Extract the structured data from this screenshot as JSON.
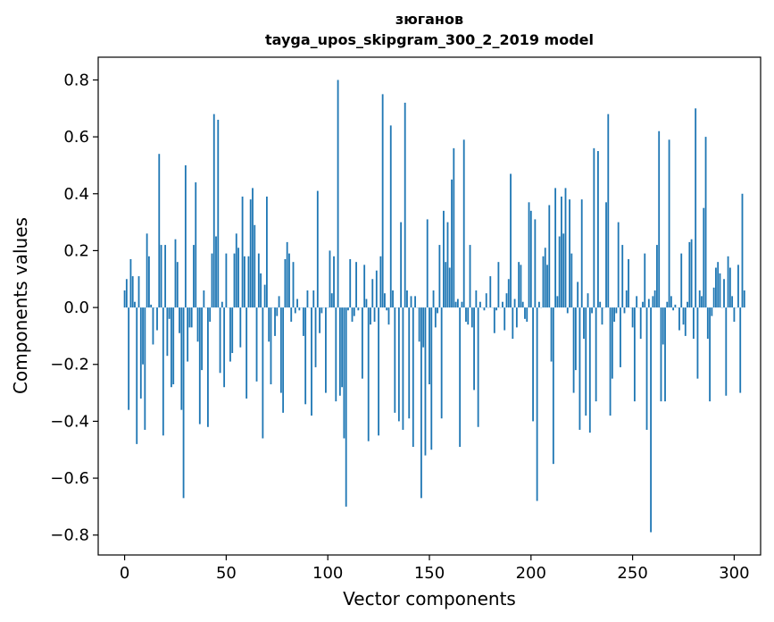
{
  "chart_data": {
    "type": "bar",
    "title": "зюганов",
    "subtitle": "tayga_upos_skipgram_300_2_2019 model",
    "xlabel": "Vector components",
    "ylabel": "Components values",
    "xlim": [
      -13,
      313
    ],
    "ylim": [
      -0.87,
      0.88
    ],
    "xticks": [
      0,
      50,
      100,
      150,
      200,
      250,
      300
    ],
    "yticks": [
      -0.8,
      -0.6,
      -0.4,
      -0.2,
      0.0,
      0.2,
      0.4,
      0.6,
      0.8
    ],
    "ytick_labels": [
      "−0.8",
      "−0.6",
      "−0.4",
      "−0.2",
      "0.0",
      "0.2",
      "0.4",
      "0.6",
      "0.8"
    ],
    "series": [
      {
        "name": "components",
        "color": "#1f77b4",
        "values": [
          0.06,
          0.1,
          -0.36,
          0.17,
          0.11,
          0.02,
          -0.48,
          0.11,
          -0.32,
          -0.2,
          -0.43,
          0.26,
          0.18,
          0.01,
          -0.13,
          0.0,
          -0.08,
          0.54,
          0.22,
          -0.45,
          0.22,
          -0.17,
          -0.04,
          -0.28,
          -0.27,
          0.24,
          0.16,
          -0.09,
          -0.36,
          -0.67,
          0.5,
          -0.19,
          -0.07,
          -0.07,
          0.22,
          0.44,
          -0.12,
          -0.41,
          -0.22,
          0.06,
          0.0,
          -0.42,
          -0.05,
          0.19,
          0.68,
          0.25,
          0.66,
          -0.23,
          0.02,
          -0.28,
          0.19,
          0.0,
          -0.19,
          -0.16,
          0.19,
          0.26,
          0.21,
          -0.14,
          0.39,
          0.18,
          -0.32,
          0.18,
          0.38,
          0.42,
          0.29,
          -0.26,
          0.19,
          0.12,
          -0.46,
          0.08,
          0.39,
          -0.12,
          -0.27,
          0.0,
          -0.1,
          -0.03,
          0.04,
          -0.3,
          -0.37,
          0.17,
          0.23,
          0.19,
          -0.05,
          0.16,
          -0.02,
          0.03,
          -0.01,
          0.0,
          -0.1,
          -0.34,
          0.06,
          0.0,
          -0.38,
          0.06,
          -0.21,
          0.41,
          -0.09,
          -0.02,
          0.0,
          -0.3,
          0.0,
          0.2,
          0.05,
          0.18,
          -0.33,
          0.8,
          -0.31,
          -0.28,
          -0.46,
          -0.7,
          -0.01,
          0.17,
          -0.05,
          -0.03,
          0.16,
          -0.01,
          0.0,
          -0.25,
          0.15,
          0.03,
          -0.47,
          -0.06,
          0.1,
          -0.05,
          0.13,
          -0.45,
          0.18,
          0.75,
          0.05,
          -0.01,
          -0.06,
          0.64,
          0.06,
          -0.37,
          0.0,
          -0.4,
          0.3,
          -0.43,
          0.72,
          0.06,
          -0.39,
          0.04,
          -0.49,
          0.04,
          0.0,
          -0.12,
          -0.67,
          -0.14,
          -0.52,
          0.31,
          -0.27,
          -0.5,
          0.06,
          -0.07,
          -0.02,
          0.22,
          -0.39,
          0.34,
          0.16,
          0.3,
          0.14,
          0.45,
          0.56,
          0.02,
          0.03,
          -0.49,
          0.02,
          0.59,
          -0.05,
          -0.06,
          0.22,
          -0.07,
          -0.29,
          0.06,
          -0.42,
          0.02,
          0.0,
          -0.01,
          0.05,
          0.0,
          0.11,
          0.0,
          -0.09,
          -0.01,
          0.16,
          0.0,
          0.02,
          -0.08,
          0.05,
          0.1,
          0.47,
          -0.11,
          0.03,
          -0.07,
          0.16,
          0.15,
          0.02,
          -0.04,
          -0.05,
          0.37,
          0.34,
          -0.4,
          0.31,
          -0.68,
          0.02,
          0.0,
          0.18,
          0.21,
          0.15,
          0.36,
          -0.19,
          -0.55,
          0.42,
          0.04,
          0.25,
          0.39,
          0.26,
          0.42,
          -0.02,
          0.38,
          0.19,
          -0.3,
          -0.22,
          0.09,
          -0.43,
          0.38,
          -0.11,
          -0.38,
          0.05,
          -0.44,
          -0.02,
          0.56,
          -0.33,
          0.55,
          0.02,
          -0.06,
          0.0,
          0.37,
          0.68,
          -0.38,
          -0.25,
          -0.05,
          -0.02,
          0.3,
          -0.21,
          0.22,
          -0.02,
          0.06,
          0.17,
          0.0,
          -0.07,
          -0.33,
          0.04,
          0.0,
          -0.11,
          0.02,
          0.19,
          -0.43,
          0.03,
          -0.79,
          0.04,
          0.06,
          0.22,
          0.62,
          -0.33,
          -0.13,
          -0.33,
          0.02,
          0.59,
          0.04,
          -0.01,
          0.01,
          0.0,
          -0.08,
          0.19,
          -0.06,
          -0.1,
          0.02,
          0.23,
          0.24,
          -0.11,
          0.7,
          -0.25,
          0.06,
          0.04,
          0.35,
          0.6,
          -0.11,
          -0.33,
          -0.03,
          0.07,
          0.14,
          0.16,
          0.12,
          0.0,
          0.1,
          -0.31,
          0.18,
          0.14,
          0.04,
          -0.05,
          0.0,
          0.15,
          -0.3,
          0.4,
          0.06
        ]
      }
    ],
    "grid": false,
    "legend": "none"
  }
}
